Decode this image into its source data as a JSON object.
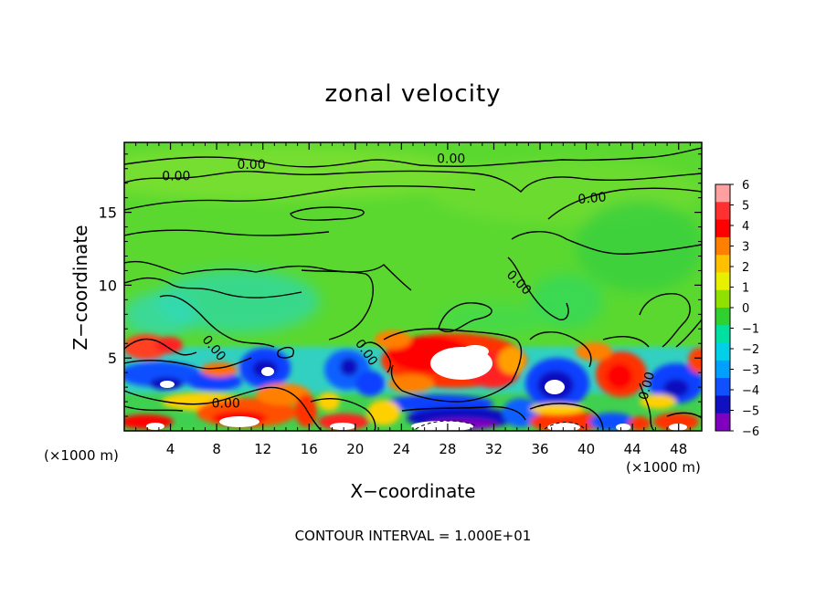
{
  "chart_data": {
    "type": "heatmap",
    "title": "zonal velocity",
    "xlabel": "X−coordinate",
    "ylabel": "Z−coordinate",
    "x_unit_left": "(×1000 m)",
    "x_unit_right": "(×1000 m)",
    "footer": "CONTOUR INTERVAL = 1.000E+01",
    "xlim": [
      0,
      50
    ],
    "ylim": [
      0,
      19.8
    ],
    "x_ticks": [
      4,
      8,
      12,
      16,
      20,
      24,
      28,
      32,
      36,
      40,
      44,
      48
    ],
    "y_ticks": [
      5,
      10,
      15
    ],
    "colorbar": {
      "ticks": [
        "6",
        "5",
        "4",
        "3",
        "2",
        "1",
        "0",
        "−1",
        "−2",
        "−3",
        "−4",
        "−5",
        "−6"
      ],
      "colors": [
        "#ffa0a0",
        "#ff3030",
        "#ff0000",
        "#ff8000",
        "#ffc000",
        "#e8f000",
        "#90e000",
        "#30d030",
        "#00e0a0",
        "#00d0e8",
        "#00a0ff",
        "#1050ff",
        "#1010c0",
        "#8000c0"
      ]
    },
    "contour_labels": [
      {
        "text": "0.00",
        "x": 28.3,
        "z": 18.7,
        "angle": 0
      },
      {
        "text": "0.00",
        "x": 4.5,
        "z": 17.5,
        "angle": 0
      },
      {
        "text": "0.00",
        "x": 11.0,
        "z": 18.3,
        "angle": 0
      },
      {
        "text": "0.00",
        "x": 40.5,
        "z": 16.0,
        "angle": -5
      },
      {
        "text": "0.00",
        "x": 34.2,
        "z": 10.2,
        "angle": 45
      },
      {
        "text": "0.00",
        "x": 7.8,
        "z": 5.7,
        "angle": 50
      },
      {
        "text": "0.00",
        "x": 21.0,
        "z": 5.4,
        "angle": 55
      },
      {
        "text": "0.00",
        "x": 8.8,
        "z": 1.9,
        "angle": 0
      },
      {
        "text": "0.00",
        "x": 45.2,
        "z": 3.1,
        "angle": -75
      }
    ],
    "features": [
      {
        "sign": "positive",
        "x": 28.5,
        "z": 4.9,
        "magnitude": "saturated"
      },
      {
        "sign": "positive",
        "x": 9.5,
        "z": 0.9,
        "magnitude": "saturated"
      },
      {
        "sign": "positive",
        "x": 19.0,
        "z": 0.7,
        "magnitude": "saturated"
      },
      {
        "sign": "positive",
        "x": 3.5,
        "z": 0.5,
        "magnitude": "saturated"
      },
      {
        "sign": "positive",
        "x": 36.8,
        "z": 0.6,
        "magnitude": "saturated"
      },
      {
        "sign": "positive",
        "x": 42.5,
        "z": 0.6,
        "magnitude": "saturated"
      },
      {
        "sign": "positive",
        "x": 47.5,
        "z": 0.7,
        "magnitude": "saturated"
      },
      {
        "sign": "positive",
        "x": 43.5,
        "z": 4.2,
        "magnitude": 5
      },
      {
        "sign": "positive",
        "x": 2.5,
        "z": 5.3,
        "magnitude": 5
      },
      {
        "sign": "negative",
        "x": 3.0,
        "z": 3.2,
        "magnitude": "saturated"
      },
      {
        "sign": "negative",
        "x": 12.5,
        "z": 4.3,
        "magnitude": "saturated"
      },
      {
        "sign": "negative",
        "x": 37.5,
        "z": 3.1,
        "magnitude": "saturated"
      },
      {
        "sign": "negative",
        "x": 28.0,
        "z": 0.6,
        "magnitude": "saturated"
      },
      {
        "sign": "negative",
        "x": 20.5,
        "z": 4.5,
        "magnitude": 5
      },
      {
        "sign": "negative",
        "x": 47.5,
        "z": 3.6,
        "magnitude": 5
      },
      {
        "sign": "negative",
        "x": 39.5,
        "z": 0.8,
        "magnitude": 6
      }
    ]
  }
}
